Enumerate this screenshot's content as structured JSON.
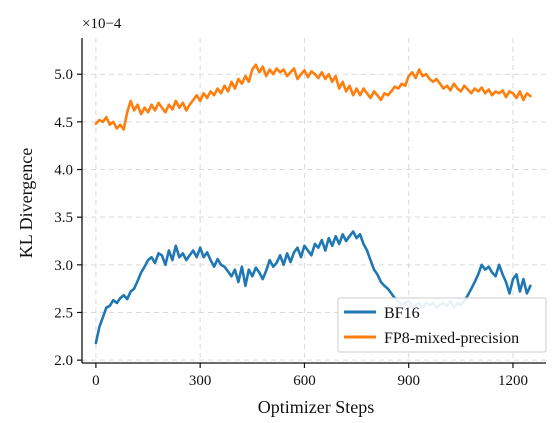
{
  "chart_data": {
    "type": "line",
    "title": "",
    "xlabel": "Optimizer Steps",
    "ylabel": "KL Divergence",
    "y_scale_multiplier": "×10−4",
    "xlim": [
      -40,
      1295
    ],
    "ylim": [
      1.97,
      5.38
    ],
    "x_ticks": [
      0,
      300,
      600,
      900,
      1200
    ],
    "y_ticks": [
      2.0,
      2.5,
      3.0,
      3.5,
      4.0,
      4.5,
      5.0
    ],
    "grid": true,
    "legend_position": "lower-right",
    "series": [
      {
        "name": "BF16",
        "color": "#1f77b4",
        "x": [
          0,
          10,
          20,
          30,
          40,
          50,
          60,
          70,
          80,
          90,
          100,
          110,
          120,
          130,
          140,
          150,
          160,
          170,
          180,
          190,
          200,
          210,
          220,
          230,
          240,
          250,
          260,
          270,
          280,
          290,
          300,
          310,
          320,
          330,
          340,
          350,
          360,
          370,
          380,
          390,
          400,
          410,
          420,
          430,
          440,
          450,
          460,
          470,
          480,
          490,
          500,
          510,
          520,
          530,
          540,
          550,
          560,
          570,
          580,
          590,
          600,
          610,
          620,
          630,
          640,
          650,
          660,
          670,
          680,
          690,
          700,
          710,
          720,
          730,
          740,
          750,
          760,
          770,
          780,
          790,
          800,
          810,
          820,
          830,
          840,
          850,
          860,
          870,
          880,
          890,
          900,
          910,
          920,
          930,
          940,
          950,
          960,
          970,
          980,
          990,
          1000,
          1010,
          1020,
          1030,
          1040,
          1050,
          1060,
          1070,
          1080,
          1090,
          1100,
          1110,
          1120,
          1130,
          1140,
          1150,
          1160,
          1170,
          1180,
          1190,
          1200,
          1210,
          1220,
          1230,
          1240,
          1250
        ],
        "values": [
          2.18,
          2.35,
          2.45,
          2.55,
          2.57,
          2.63,
          2.6,
          2.65,
          2.68,
          2.64,
          2.72,
          2.75,
          2.83,
          2.92,
          2.98,
          3.05,
          3.08,
          3.02,
          3.12,
          3.1,
          3.0,
          3.15,
          3.05,
          3.2,
          3.08,
          3.12,
          3.05,
          3.1,
          3.15,
          3.08,
          3.18,
          3.08,
          3.13,
          3.05,
          2.98,
          3.06,
          3.0,
          2.98,
          2.93,
          2.88,
          2.95,
          2.82,
          2.98,
          2.78,
          2.95,
          2.88,
          2.97,
          2.92,
          2.85,
          2.94,
          3.05,
          2.98,
          3.02,
          3.1,
          3.0,
          3.12,
          3.03,
          3.13,
          3.18,
          3.08,
          3.2,
          3.15,
          3.1,
          3.22,
          3.18,
          3.26,
          3.15,
          3.28,
          3.2,
          3.3,
          3.22,
          3.32,
          3.25,
          3.3,
          3.35,
          3.28,
          3.32,
          3.22,
          3.15,
          3.05,
          2.95,
          2.9,
          2.82,
          2.78,
          2.75,
          2.7,
          2.65,
          2.62,
          2.58,
          2.6,
          2.62,
          2.55,
          2.58,
          2.6,
          2.55,
          2.6,
          2.58,
          2.6,
          2.55,
          2.58,
          2.6,
          2.57,
          2.62,
          2.55,
          2.6,
          2.58,
          2.62,
          2.68,
          2.75,
          2.82,
          2.9,
          3.0,
          2.95,
          2.98,
          2.92,
          2.88,
          3.0,
          2.9,
          2.82,
          2.7,
          2.85,
          2.9,
          2.72,
          2.85,
          2.7,
          2.78
        ]
      },
      {
        "name": "FP8-mixed-precision",
        "color": "#ff7f0e",
        "x": [
          0,
          10,
          20,
          30,
          40,
          50,
          60,
          70,
          80,
          90,
          100,
          110,
          120,
          130,
          140,
          150,
          160,
          170,
          180,
          190,
          200,
          210,
          220,
          230,
          240,
          250,
          260,
          270,
          280,
          290,
          300,
          310,
          320,
          330,
          340,
          350,
          360,
          370,
          380,
          390,
          400,
          410,
          420,
          430,
          440,
          450,
          460,
          470,
          480,
          490,
          500,
          510,
          520,
          530,
          540,
          550,
          560,
          570,
          580,
          590,
          600,
          610,
          620,
          630,
          640,
          650,
          660,
          670,
          680,
          690,
          700,
          710,
          720,
          730,
          740,
          750,
          760,
          770,
          780,
          790,
          800,
          810,
          820,
          830,
          840,
          850,
          860,
          870,
          880,
          890,
          900,
          910,
          920,
          930,
          940,
          950,
          960,
          970,
          980,
          990,
          1000,
          1010,
          1020,
          1030,
          1040,
          1050,
          1060,
          1070,
          1080,
          1090,
          1100,
          1110,
          1120,
          1130,
          1140,
          1150,
          1160,
          1170,
          1180,
          1190,
          1200,
          1210,
          1220,
          1230,
          1240,
          1250
        ],
        "values": [
          4.48,
          4.52,
          4.5,
          4.55,
          4.47,
          4.5,
          4.43,
          4.47,
          4.42,
          4.6,
          4.72,
          4.62,
          4.68,
          4.58,
          4.65,
          4.6,
          4.68,
          4.62,
          4.7,
          4.65,
          4.6,
          4.68,
          4.63,
          4.72,
          4.65,
          4.7,
          4.62,
          4.68,
          4.73,
          4.78,
          4.72,
          4.8,
          4.75,
          4.82,
          4.78,
          4.85,
          4.8,
          4.88,
          4.82,
          4.92,
          4.85,
          4.95,
          4.9,
          4.98,
          4.92,
          5.05,
          5.1,
          5.02,
          5.08,
          4.98,
          5.05,
          5.0,
          5.06,
          5.02,
          5.05,
          4.98,
          5.02,
          5.06,
          4.95,
          5.0,
          5.04,
          4.97,
          5.03,
          5.0,
          4.96,
          5.02,
          4.95,
          5.0,
          4.92,
          4.98,
          4.85,
          4.92,
          4.82,
          4.88,
          4.78,
          4.85,
          4.78,
          4.85,
          4.8,
          4.75,
          4.82,
          4.78,
          4.73,
          4.8,
          4.78,
          4.82,
          4.87,
          4.85,
          4.9,
          4.88,
          4.98,
          5.02,
          4.96,
          5.05,
          4.98,
          5.0,
          4.95,
          4.92,
          4.95,
          4.9,
          4.85,
          4.88,
          4.83,
          4.9,
          4.85,
          4.82,
          4.88,
          4.84,
          4.8,
          4.85,
          4.82,
          4.86,
          4.8,
          4.84,
          4.78,
          4.82,
          4.8,
          4.83,
          4.76,
          4.82,
          4.8,
          4.75,
          4.82,
          4.73,
          4.8,
          4.77
        ]
      }
    ]
  }
}
